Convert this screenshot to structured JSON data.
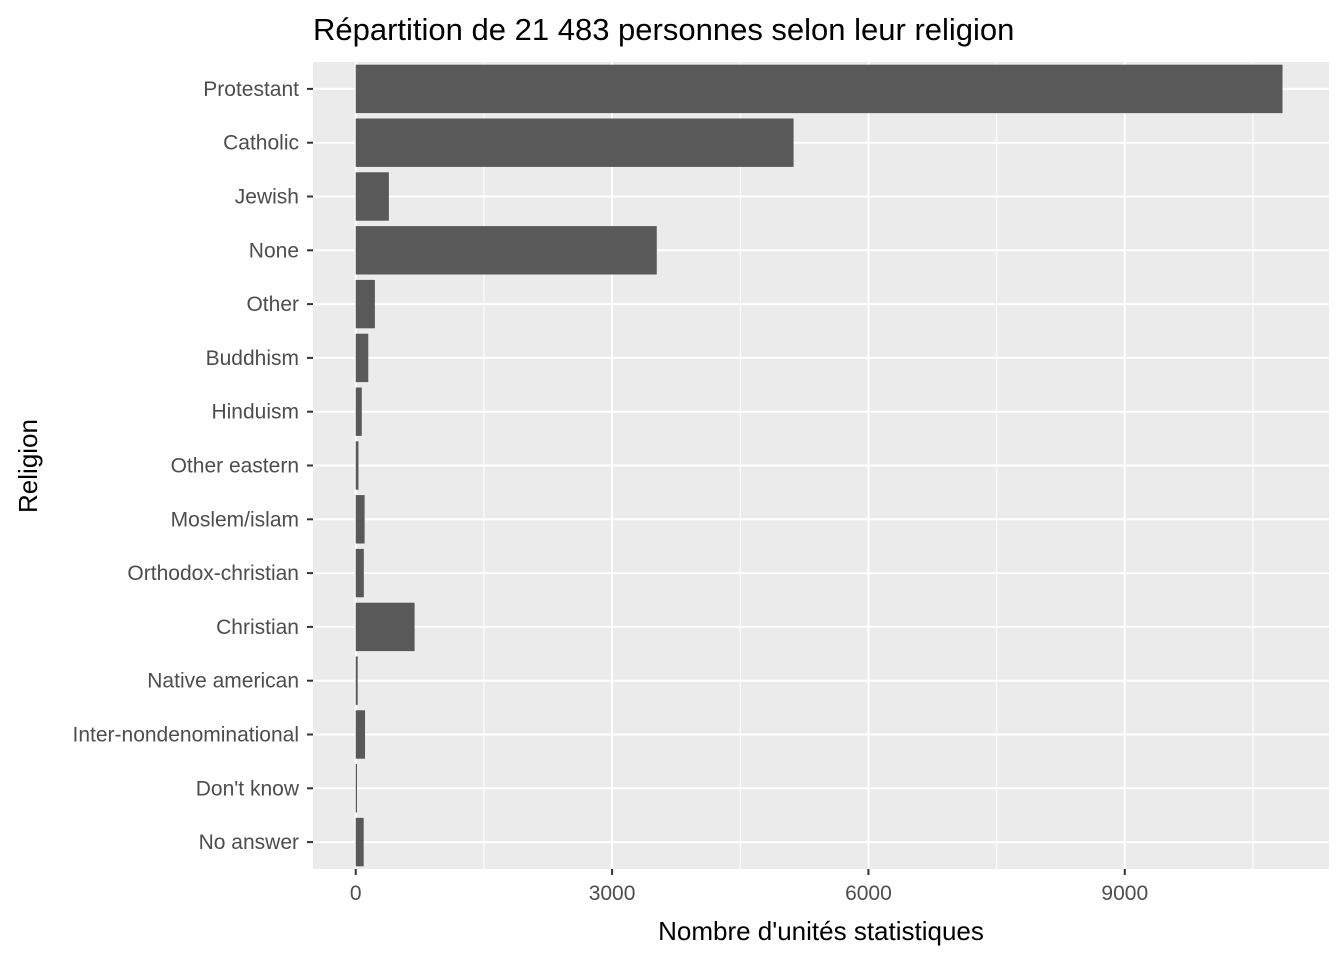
{
  "chart_data": {
    "type": "bar",
    "orientation": "horizontal",
    "title": "Répartition de 21 483 personnes selon leur religion",
    "xlabel": "Nombre d'unités statistiques",
    "ylabel": "Religion",
    "categories": [
      "Protestant",
      "Catholic",
      "Jewish",
      "None",
      "Other",
      "Buddhism",
      "Hinduism",
      "Other eastern",
      "Moslem/islam",
      "Orthodox-christian",
      "Christian",
      "Native american",
      "Inter-nondenominational",
      "Don't know",
      "No answer"
    ],
    "values": [
      10846,
      5124,
      388,
      3523,
      224,
      147,
      71,
      32,
      104,
      95,
      689,
      23,
      109,
      15,
      93
    ],
    "xlim": [
      -500,
      11390
    ],
    "xticks": [
      0,
      3000,
      6000,
      9000
    ],
    "xtick_labels": [
      "0",
      "3000",
      "6000",
      "9000"
    ],
    "grid": true,
    "bar_color": "#595959",
    "panel_background": "#ebebeb"
  }
}
